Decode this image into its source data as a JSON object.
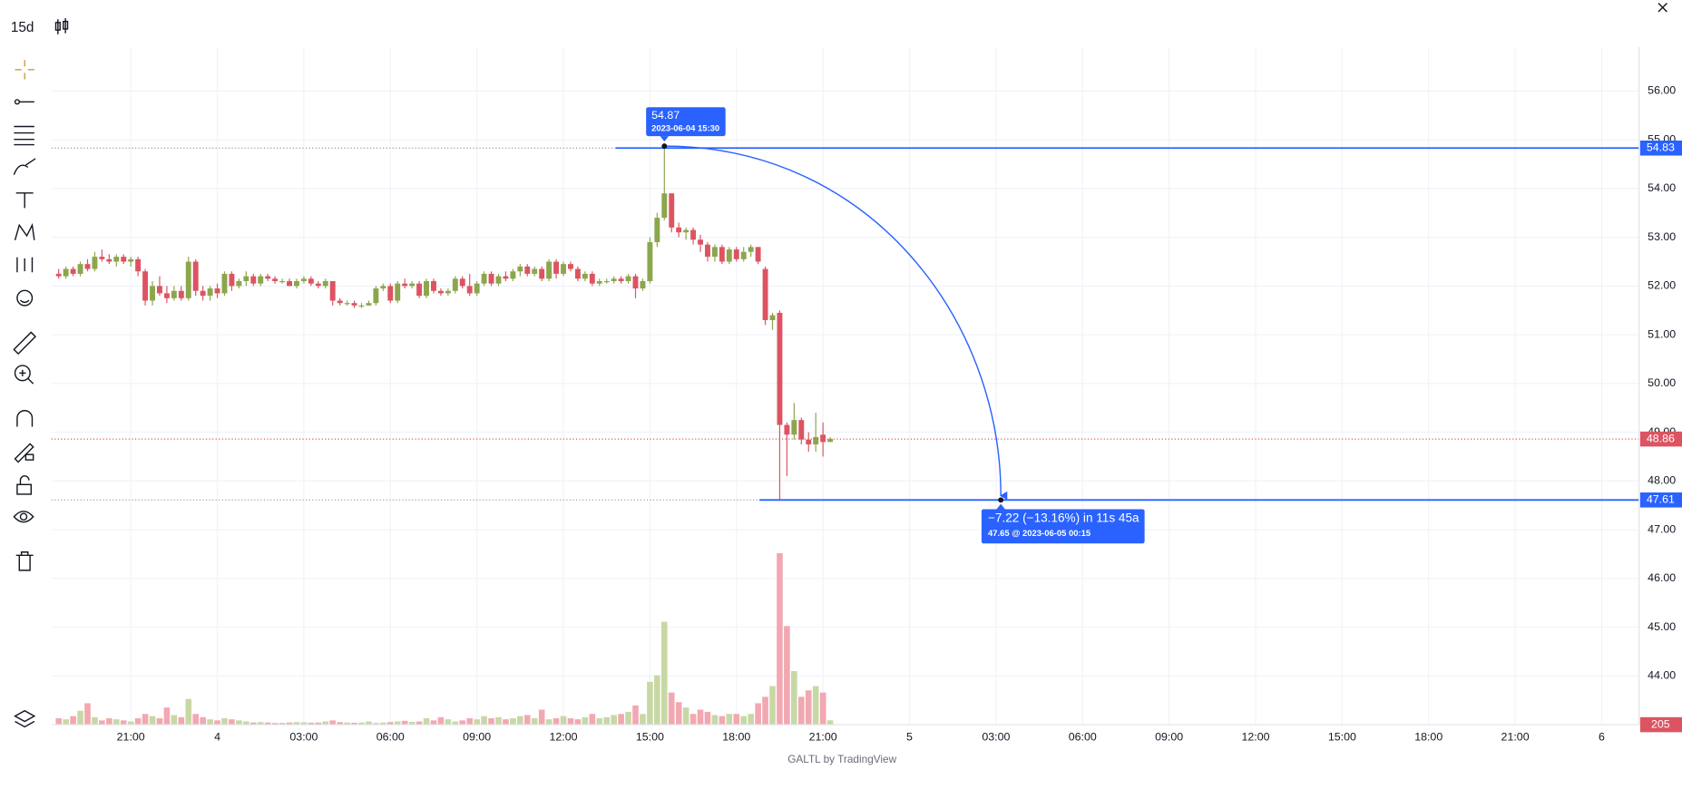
{
  "toolbar": {
    "interval": "15d"
  },
  "footer": "GALTL by TradingView",
  "chart_data": {
    "type": "candlestick",
    "x": [
      "2023-06-03 18:30",
      "2023-06-03 18:45",
      "2023-06-03 19:00",
      "2023-06-03 19:15",
      "2023-06-03 19:30",
      "2023-06-03 19:45",
      "2023-06-03 20:00",
      "2023-06-03 20:15",
      "2023-06-03 20:30",
      "2023-06-03 20:45",
      "2023-06-03 21:00",
      "2023-06-03 21:15",
      "2023-06-03 21:30",
      "2023-06-03 21:45",
      "2023-06-03 22:00",
      "2023-06-03 22:15",
      "2023-06-03 22:30",
      "2023-06-03 22:45",
      "2023-06-03 23:00",
      "2023-06-03 23:15",
      "2023-06-03 23:30",
      "2023-06-03 23:45",
      "2023-06-04 00:00",
      "2023-06-04 00:15",
      "2023-06-04 00:30",
      "2023-06-04 00:45",
      "2023-06-04 01:00",
      "2023-06-04 01:15",
      "2023-06-04 01:30",
      "2023-06-04 01:45",
      "2023-06-04 02:00",
      "2023-06-04 02:15",
      "2023-06-04 02:30",
      "2023-06-04 02:45",
      "2023-06-04 03:00",
      "2023-06-04 03:15",
      "2023-06-04 03:30",
      "2023-06-04 03:45",
      "2023-06-04 04:00",
      "2023-06-04 04:15",
      "2023-06-04 04:30",
      "2023-06-04 04:45",
      "2023-06-04 05:00",
      "2023-06-04 05:15",
      "2023-06-04 05:30",
      "2023-06-04 05:45",
      "2023-06-04 06:00",
      "2023-06-04 06:15",
      "2023-06-04 06:30",
      "2023-06-04 06:45",
      "2023-06-04 07:00",
      "2023-06-04 07:15",
      "2023-06-04 07:30",
      "2023-06-04 07:45",
      "2023-06-04 08:00",
      "2023-06-04 08:15",
      "2023-06-04 08:30",
      "2023-06-04 08:45",
      "2023-06-04 09:00",
      "2023-06-04 09:15",
      "2023-06-04 09:30",
      "2023-06-04 09:45",
      "2023-06-04 10:00",
      "2023-06-04 10:15",
      "2023-06-04 10:30",
      "2023-06-04 10:45",
      "2023-06-04 11:00",
      "2023-06-04 11:15",
      "2023-06-04 11:30",
      "2023-06-04 11:45",
      "2023-06-04 12:00",
      "2023-06-04 12:15",
      "2023-06-04 12:30",
      "2023-06-04 12:45",
      "2023-06-04 13:00",
      "2023-06-04 13:15",
      "2023-06-04 13:30",
      "2023-06-04 13:45",
      "2023-06-04 14:00",
      "2023-06-04 14:15",
      "2023-06-04 14:30",
      "2023-06-04 14:45",
      "2023-06-04 15:00",
      "2023-06-04 15:15",
      "2023-06-04 15:30",
      "2023-06-04 15:45",
      "2023-06-04 16:00",
      "2023-06-04 16:15",
      "2023-06-04 16:30",
      "2023-06-04 16:45",
      "2023-06-04 17:00",
      "2023-06-04 17:15",
      "2023-06-04 17:30",
      "2023-06-04 17:45",
      "2023-06-04 18:00",
      "2023-06-04 18:15",
      "2023-06-04 18:30",
      "2023-06-04 18:45",
      "2023-06-04 19:00",
      "2023-06-04 19:15",
      "2023-06-04 19:30",
      "2023-06-04 19:45",
      "2023-06-04 20:00",
      "2023-06-04 20:15",
      "2023-06-04 20:30",
      "2023-06-04 20:45",
      "2023-06-04 21:00",
      "2023-06-04 21:15"
    ],
    "ohlc": [
      [
        52.25,
        52.35,
        52.15,
        52.2
      ],
      [
        52.2,
        52.4,
        52.15,
        52.35
      ],
      [
        52.35,
        52.4,
        52.2,
        52.25
      ],
      [
        52.25,
        52.5,
        52.2,
        52.45
      ],
      [
        52.45,
        52.55,
        52.3,
        52.35
      ],
      [
        52.35,
        52.7,
        52.3,
        52.6
      ],
      [
        52.6,
        52.75,
        52.5,
        52.55
      ],
      [
        52.55,
        52.65,
        52.45,
        52.5
      ],
      [
        52.5,
        52.65,
        52.4,
        52.6
      ],
      [
        52.6,
        52.65,
        52.45,
        52.5
      ],
      [
        52.5,
        52.6,
        52.4,
        52.55
      ],
      [
        52.55,
        52.6,
        52.2,
        52.3
      ],
      [
        52.3,
        52.35,
        51.6,
        51.7
      ],
      [
        51.7,
        52.1,
        51.6,
        52.0
      ],
      [
        52.0,
        52.2,
        51.8,
        51.85
      ],
      [
        51.85,
        52.0,
        51.65,
        51.75
      ],
      [
        51.75,
        52.0,
        51.7,
        51.9
      ],
      [
        51.9,
        52.0,
        51.7,
        51.75
      ],
      [
        51.75,
        52.6,
        51.7,
        52.5
      ],
      [
        52.5,
        52.55,
        51.8,
        51.9
      ],
      [
        51.9,
        52.0,
        51.7,
        51.8
      ],
      [
        51.8,
        52.0,
        51.7,
        51.95
      ],
      [
        51.95,
        52.05,
        51.75,
        51.85
      ],
      [
        51.85,
        52.3,
        51.8,
        52.25
      ],
      [
        52.25,
        52.3,
        51.9,
        52.0
      ],
      [
        52.0,
        52.15,
        51.95,
        52.1
      ],
      [
        52.1,
        52.3,
        52.0,
        52.2
      ],
      [
        52.2,
        52.25,
        52.0,
        52.05
      ],
      [
        52.05,
        52.25,
        52.0,
        52.2
      ],
      [
        52.2,
        52.25,
        52.1,
        52.15
      ],
      [
        52.15,
        52.2,
        52.05,
        52.1
      ],
      [
        52.1,
        52.15,
        52.05,
        52.1
      ],
      [
        52.1,
        52.15,
        52.0,
        52.0
      ],
      [
        52.0,
        52.15,
        51.95,
        52.1
      ],
      [
        52.1,
        52.2,
        52.05,
        52.15
      ],
      [
        52.15,
        52.2,
        52.0,
        52.05
      ],
      [
        52.05,
        52.1,
        51.95,
        52.0
      ],
      [
        52.0,
        52.15,
        51.95,
        52.1
      ],
      [
        52.1,
        52.1,
        51.6,
        51.7
      ],
      [
        51.7,
        51.75,
        51.6,
        51.65
      ],
      [
        51.65,
        51.7,
        51.6,
        51.65
      ],
      [
        51.65,
        51.7,
        51.55,
        51.6
      ],
      [
        51.6,
        51.65,
        51.55,
        51.6
      ],
      [
        51.6,
        51.7,
        51.6,
        51.65
      ],
      [
        51.65,
        52.0,
        51.6,
        51.95
      ],
      [
        51.95,
        52.05,
        51.9,
        52.0
      ],
      [
        52.0,
        52.05,
        51.65,
        51.7
      ],
      [
        51.7,
        52.1,
        51.65,
        52.05
      ],
      [
        52.05,
        52.15,
        51.95,
        52.0
      ],
      [
        52.0,
        52.1,
        51.95,
        52.05
      ],
      [
        52.05,
        52.1,
        51.75,
        51.8
      ],
      [
        51.8,
        52.15,
        51.75,
        52.1
      ],
      [
        52.1,
        52.15,
        51.85,
        51.9
      ],
      [
        51.9,
        51.95,
        51.8,
        51.85
      ],
      [
        51.85,
        51.95,
        51.8,
        51.9
      ],
      [
        51.9,
        52.2,
        51.85,
        52.15
      ],
      [
        52.15,
        52.2,
        51.95,
        52.0
      ],
      [
        52.0,
        52.25,
        51.8,
        51.85
      ],
      [
        51.85,
        52.1,
        51.8,
        52.05
      ],
      [
        52.05,
        52.3,
        52.0,
        52.25
      ],
      [
        52.25,
        52.3,
        52.0,
        52.05
      ],
      [
        52.05,
        52.25,
        52.0,
        52.2
      ],
      [
        52.2,
        52.3,
        52.1,
        52.15
      ],
      [
        52.15,
        52.35,
        52.1,
        52.3
      ],
      [
        52.3,
        52.45,
        52.2,
        52.4
      ],
      [
        52.4,
        52.45,
        52.2,
        52.25
      ],
      [
        52.25,
        52.4,
        52.2,
        52.35
      ],
      [
        52.35,
        52.4,
        52.1,
        52.15
      ],
      [
        52.15,
        52.55,
        52.1,
        52.5
      ],
      [
        52.5,
        52.55,
        52.15,
        52.25
      ],
      [
        52.25,
        52.5,
        52.2,
        52.45
      ],
      [
        52.45,
        52.5,
        52.3,
        52.35
      ],
      [
        52.35,
        52.4,
        52.1,
        52.15
      ],
      [
        52.15,
        52.3,
        52.1,
        52.25
      ],
      [
        52.25,
        52.3,
        52.0,
        52.05
      ],
      [
        52.05,
        52.15,
        52.0,
        52.1
      ],
      [
        52.1,
        52.15,
        52.05,
        52.1
      ],
      [
        52.1,
        52.2,
        52.05,
        52.15
      ],
      [
        52.15,
        52.2,
        52.05,
        52.1
      ],
      [
        52.1,
        52.25,
        52.05,
        52.2
      ],
      [
        52.2,
        52.25,
        51.75,
        51.95
      ],
      [
        51.95,
        52.15,
        51.9,
        52.1
      ],
      [
        52.1,
        53.0,
        52.05,
        52.9
      ],
      [
        52.9,
        53.5,
        52.8,
        53.4
      ],
      [
        53.4,
        54.87,
        53.35,
        53.9
      ],
      [
        53.9,
        53.9,
        53.1,
        53.2
      ],
      [
        53.2,
        53.3,
        53.0,
        53.1
      ],
      [
        53.1,
        53.2,
        52.95,
        53.15
      ],
      [
        53.15,
        53.2,
        52.85,
        52.95
      ],
      [
        52.95,
        53.05,
        52.7,
        52.85
      ],
      [
        52.85,
        52.9,
        52.5,
        52.6
      ],
      [
        52.6,
        52.85,
        52.5,
        52.8
      ],
      [
        52.8,
        52.85,
        52.45,
        52.5
      ],
      [
        52.5,
        52.8,
        52.45,
        52.75
      ],
      [
        52.75,
        52.8,
        52.5,
        52.55
      ],
      [
        52.55,
        52.8,
        52.5,
        52.7
      ],
      [
        52.7,
        52.85,
        52.6,
        52.8
      ],
      [
        52.8,
        52.8,
        52.45,
        52.5
      ],
      [
        52.35,
        52.4,
        51.2,
        51.3
      ],
      [
        51.3,
        51.45,
        51.1,
        51.4
      ],
      [
        51.45,
        51.5,
        47.61,
        49.15
      ],
      [
        49.15,
        49.2,
        48.1,
        48.95
      ],
      [
        48.95,
        49.6,
        48.85,
        49.25
      ],
      [
        49.25,
        49.3,
        48.75,
        48.85
      ],
      [
        48.85,
        49.0,
        48.6,
        48.75
      ],
      [
        48.75,
        49.4,
        48.6,
        48.9
      ],
      [
        48.95,
        49.2,
        48.5,
        48.8
      ],
      [
        48.8,
        48.9,
        48.8,
        48.86
      ]
    ],
    "volume": [
      300,
      250,
      400,
      650,
      1000,
      350,
      200,
      300,
      250,
      200,
      150,
      300,
      500,
      400,
      300,
      800,
      450,
      350,
      1200,
      500,
      350,
      250,
      200,
      300,
      250,
      200,
      150,
      100,
      120,
      100,
      80,
      90,
      100,
      120,
      110,
      90,
      100,
      150,
      200,
      120,
      100,
      90,
      100,
      150,
      80,
      100,
      120,
      150,
      180,
      130,
      150,
      300,
      200,
      350,
      250,
      150,
      200,
      300,
      250,
      400,
      300,
      350,
      250,
      300,
      400,
      450,
      300,
      700,
      250,
      300,
      400,
      300,
      250,
      350,
      500,
      300,
      350,
      450,
      500,
      600,
      900,
      500,
      2000,
      2300,
      4800,
      1500,
      1050,
      800,
      500,
      700,
      600,
      450,
      400,
      500,
      500,
      400,
      500,
      1000,
      1300,
      1800,
      8000,
      4600,
      2500,
      1300,
      1600,
      1800,
      1500,
      205
    ],
    "colors": {
      "up": "#8ba64d",
      "down": "#dc5462",
      "volume_up": "#c8d8a5",
      "volume_down": "#f2a8b1",
      "drawing": "#2962ff"
    },
    "xlim": [
      "2023-06-03 18:15",
      "2023-06-06 01:00"
    ],
    "xticks": [
      {
        "value": "2023-06-03 21:00",
        "label": "21:00"
      },
      {
        "value": "2023-06-04 00:00",
        "label": "4"
      },
      {
        "value": "2023-06-04 03:00",
        "label": "03:00"
      },
      {
        "value": "2023-06-04 06:00",
        "label": "06:00"
      },
      {
        "value": "2023-06-04 09:00",
        "label": "09:00"
      },
      {
        "value": "2023-06-04 12:00",
        "label": "12:00"
      },
      {
        "value": "2023-06-04 15:00",
        "label": "15:00"
      },
      {
        "value": "2023-06-04 18:00",
        "label": "18:00"
      },
      {
        "value": "2023-06-04 21:00",
        "label": "21:00"
      },
      {
        "value": "2023-06-05 00:00",
        "label": "5"
      },
      {
        "value": "2023-06-05 03:00",
        "label": "03:00"
      },
      {
        "value": "2023-06-05 06:00",
        "label": "06:00"
      },
      {
        "value": "2023-06-05 09:00",
        "label": "09:00"
      },
      {
        "value": "2023-06-05 12:00",
        "label": "12:00"
      },
      {
        "value": "2023-06-05 15:00",
        "label": "15:00"
      },
      {
        "value": "2023-06-05 18:00",
        "label": "18:00"
      },
      {
        "value": "2023-06-05 21:00",
        "label": "21:00"
      },
      {
        "value": "2023-06-06 00:00",
        "label": "6"
      }
    ],
    "ylim": [
      43,
      56.9
    ],
    "yticks": [
      {
        "value": 44,
        "label": "44.00"
      },
      {
        "value": 45,
        "label": "45.00"
      },
      {
        "value": 46,
        "label": "46.00"
      },
      {
        "value": 47,
        "label": "47.00"
      },
      {
        "value": 48,
        "label": "48.00"
      },
      {
        "value": 49,
        "label": "49.00"
      },
      {
        "value": 50,
        "label": "50.00"
      },
      {
        "value": 51,
        "label": "51.00"
      },
      {
        "value": 52,
        "label": "52.00"
      },
      {
        "value": 53,
        "label": "53.00"
      },
      {
        "value": 54,
        "label": "54.00"
      },
      {
        "value": 55,
        "label": "55.00"
      },
      {
        "value": 56,
        "label": "56.00"
      }
    ],
    "volume_ylim": [
      0,
      11000
    ],
    "grid": true,
    "last_price": 48.86,
    "hlines": [
      54.83,
      47.61
    ],
    "tooltip": {
      "value": 54.87,
      "time": "2023-06-04 15:30"
    },
    "measure": {
      "text": "−7.22 (−13.16%) in 11s 45a",
      "detail": "47.65 @ 2023-06-05  00:15"
    }
  }
}
